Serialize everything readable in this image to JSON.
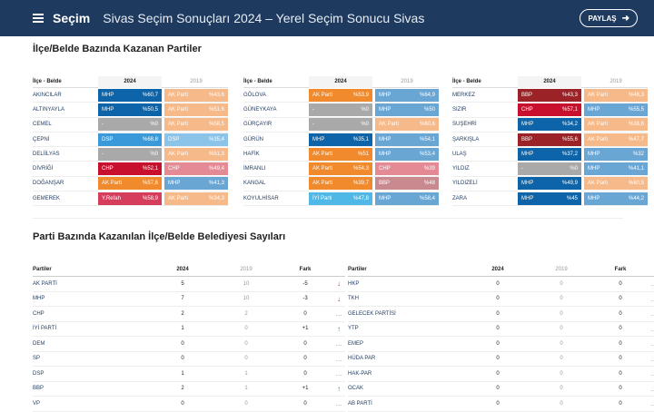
{
  "header": {
    "brand": "Seçim",
    "title": "Sivas Seçim Sonuçları 2024 – Yerel Seçim Sonucu Sivas",
    "share_label": "PAYLAŞ",
    "share_icon": "arrow-right-icon",
    "menu_icon": "hamburger-icon"
  },
  "section1": {
    "title": "İlçe/Belde Bazında Kazanan Partiler",
    "col_name": "İlçe - Belde",
    "col_2024": "2024",
    "col_2019": "2019",
    "groups": [
      [
        {
          "name": "AKINCILAR",
          "p24": "MHP",
          "v24": "%60,7",
          "c24": "#0d64a8",
          "p19": "AK Parti",
          "v19": "%43,6",
          "c19": "#f6b98a"
        },
        {
          "name": "ALTINYAYLA",
          "p24": "MHP",
          "v24": "%50,5",
          "c24": "#0d64a8",
          "p19": "AK Parti",
          "v19": "%51,6",
          "c19": "#f6b98a"
        },
        {
          "name": "CEMEL",
          "p24": "-",
          "v24": "%0",
          "c24": "#a9a9a9",
          "p19": "AK Parti",
          "v19": "%58,5",
          "c19": "#f6b98a"
        },
        {
          "name": "ÇEPNİ",
          "p24": "DSP",
          "v24": "%68,8",
          "c24": "#3a9ad9",
          "p19": "DSP",
          "v19": "%35,4",
          "c19": "#8cc3e8"
        },
        {
          "name": "DELİİLYAS",
          "p24": "-",
          "v24": "%0",
          "c24": "#a9a9a9",
          "p19": "AK Parti",
          "v19": "%51,3",
          "c19": "#f6b98a"
        },
        {
          "name": "DİVRİĞİ",
          "p24": "CHP",
          "v24": "%52,1",
          "c24": "#c8102e",
          "p19": "CHP",
          "v19": "%49,4",
          "c19": "#e48a95"
        },
        {
          "name": "DOĞANŞAR",
          "p24": "AK Parti",
          "v24": "%57,6",
          "c24": "#f08a2c",
          "p19": "MHP",
          "v19": "%41,3",
          "c19": "#6aa6d4"
        },
        {
          "name": "GEMEREK",
          "p24": "Y.Refah",
          "v24": "%58,9",
          "c24": "#d63d5c",
          "p19": "AK Parti",
          "v19": "%34,3",
          "c19": "#f6b98a"
        }
      ],
      [
        {
          "name": "GÖLOVA",
          "p24": "AK Parti",
          "v24": "%53,9",
          "c24": "#f08a2c",
          "p19": "MHP",
          "v19": "%64,9",
          "c19": "#6aa6d4"
        },
        {
          "name": "GÜNEYKAYA",
          "p24": "-",
          "v24": "%0",
          "c24": "#a9a9a9",
          "p19": "MHP",
          "v19": "%50",
          "c19": "#6aa6d4"
        },
        {
          "name": "GÜRÇAYIR",
          "p24": "-",
          "v24": "%0",
          "c24": "#a9a9a9",
          "p19": "AK Parti",
          "v19": "%60,6",
          "c19": "#f6b98a"
        },
        {
          "name": "GÜRÜN",
          "p24": "MHP",
          "v24": "%35,1",
          "c24": "#0d64a8",
          "p19": "MHP",
          "v19": "%54,1",
          "c19": "#6aa6d4"
        },
        {
          "name": "HAFİK",
          "p24": "AK Parti",
          "v24": "%51",
          "c24": "#f08a2c",
          "p19": "MHP",
          "v19": "%53,4",
          "c19": "#6aa6d4"
        },
        {
          "name": "İMRANLI",
          "p24": "AK Parti",
          "v24": "%54,3",
          "c24": "#f08a2c",
          "p19": "CHP",
          "v19": "%39",
          "c19": "#e48a95"
        },
        {
          "name": "KANGAL",
          "p24": "AK Parti",
          "v24": "%39,7",
          "c24": "#f08a2c",
          "p19": "BBP",
          "v19": "%48",
          "c19": "#c98a8f"
        },
        {
          "name": "KOYULHİSAR",
          "p24": "İYİ Parti",
          "v24": "%47,8",
          "c24": "#4fb8e6",
          "p19": "MHP",
          "v19": "%58,4",
          "c19": "#6aa6d4"
        }
      ],
      [
        {
          "name": "MERKEZ",
          "p24": "BBP",
          "v24": "%43,3",
          "c24": "#9b2226",
          "p19": "AK Parti",
          "v19": "%46,3",
          "c19": "#f6b98a"
        },
        {
          "name": "SIZIR",
          "p24": "CHP",
          "v24": "%57,1",
          "c24": "#c8102e",
          "p19": "MHP",
          "v19": "%55,5",
          "c19": "#6aa6d4"
        },
        {
          "name": "SUŞEHRİ",
          "p24": "MHP",
          "v24": "%34,2",
          "c24": "#0d64a8",
          "p19": "AK Parti",
          "v19": "%38,6",
          "c19": "#f6b98a"
        },
        {
          "name": "ŞARKIŞLA",
          "p24": "BBP",
          "v24": "%55,6",
          "c24": "#9b2226",
          "p19": "AK Parti",
          "v19": "%47,7",
          "c19": "#f6b98a"
        },
        {
          "name": "ULAŞ",
          "p24": "MHP",
          "v24": "%37,2",
          "c24": "#0d64a8",
          "p19": "MHP",
          "v19": "%32",
          "c19": "#6aa6d4"
        },
        {
          "name": "YILDIZ",
          "p24": "-",
          "v24": "%0",
          "c24": "#a9a9a9",
          "p19": "MHP",
          "v19": "%41,1",
          "c19": "#6aa6d4"
        },
        {
          "name": "YILDIZELİ",
          "p24": "MHP",
          "v24": "%49,9",
          "c24": "#0d64a8",
          "p19": "AK Parti",
          "v19": "%60,5",
          "c19": "#f6b98a"
        },
        {
          "name": "ZARA",
          "p24": "MHP",
          "v24": "%45",
          "c24": "#0d64a8",
          "p19": "MHP",
          "v19": "%44,2",
          "c19": "#6aa6d4"
        }
      ]
    ]
  },
  "section2": {
    "title": "Parti Bazında Kazanılan İlçe/Belde Belediyesi Sayıları",
    "col_party": "Partiler",
    "col_2024": "2024",
    "col_2019": "2019",
    "col_diff": "Fark",
    "left": [
      {
        "party": "AK PARTİ",
        "v24": "5",
        "v19": "10",
        "diff": "-5",
        "arrow": "↓",
        "ac": "#d0312d"
      },
      {
        "party": "MHP",
        "v24": "7",
        "v19": "10",
        "diff": "-3",
        "arrow": "↓",
        "ac": "#d0312d"
      },
      {
        "party": "CHP",
        "v24": "2",
        "v19": "2",
        "diff": "0",
        "arrow": "...",
        "ac": "#999999"
      },
      {
        "party": "İYİ PARTİ",
        "v24": "1",
        "v19": "0",
        "diff": "+1",
        "arrow": "↑",
        "ac": "#2e9e44"
      },
      {
        "party": "DEM",
        "v24": "0",
        "v19": "0",
        "diff": "0",
        "arrow": "...",
        "ac": "#999999"
      },
      {
        "party": "SP",
        "v24": "0",
        "v19": "0",
        "diff": "0",
        "arrow": "...",
        "ac": "#999999"
      },
      {
        "party": "DSP",
        "v24": "1",
        "v19": "1",
        "diff": "0",
        "arrow": "...",
        "ac": "#999999"
      },
      {
        "party": "BBP",
        "v24": "2",
        "v19": "1",
        "diff": "+1",
        "arrow": "↑",
        "ac": "#2e9e44"
      },
      {
        "party": "VP",
        "v24": "0",
        "v19": "0",
        "diff": "0",
        "arrow": "...",
        "ac": "#999999"
      }
    ],
    "right": [
      {
        "party": "HKP",
        "v24": "0",
        "v19": "0",
        "diff": "0",
        "arrow": "...",
        "ac": "#999999"
      },
      {
        "party": "TKH",
        "v24": "0",
        "v19": "0",
        "diff": "0",
        "arrow": "...",
        "ac": "#999999"
      },
      {
        "party": "GELECEK PARTİSİ",
        "v24": "0",
        "v19": "0",
        "diff": "0",
        "arrow": "...",
        "ac": "#999999"
      },
      {
        "party": "YTP",
        "v24": "0",
        "v19": "0",
        "diff": "0",
        "arrow": "...",
        "ac": "#999999"
      },
      {
        "party": "EMEP",
        "v24": "0",
        "v19": "0",
        "diff": "0",
        "arrow": "...",
        "ac": "#999999"
      },
      {
        "party": "HÜDA PAR",
        "v24": "0",
        "v19": "0",
        "diff": "0",
        "arrow": "...",
        "ac": "#999999"
      },
      {
        "party": "HAK-PAR",
        "v24": "0",
        "v19": "0",
        "diff": "0",
        "arrow": "...",
        "ac": "#999999"
      },
      {
        "party": "OCAK",
        "v24": "0",
        "v19": "0",
        "diff": "0",
        "arrow": "...",
        "ac": "#999999"
      },
      {
        "party": "AB PARTİ",
        "v24": "0",
        "v19": "0",
        "diff": "0",
        "arrow": "...",
        "ac": "#999999"
      }
    ]
  }
}
